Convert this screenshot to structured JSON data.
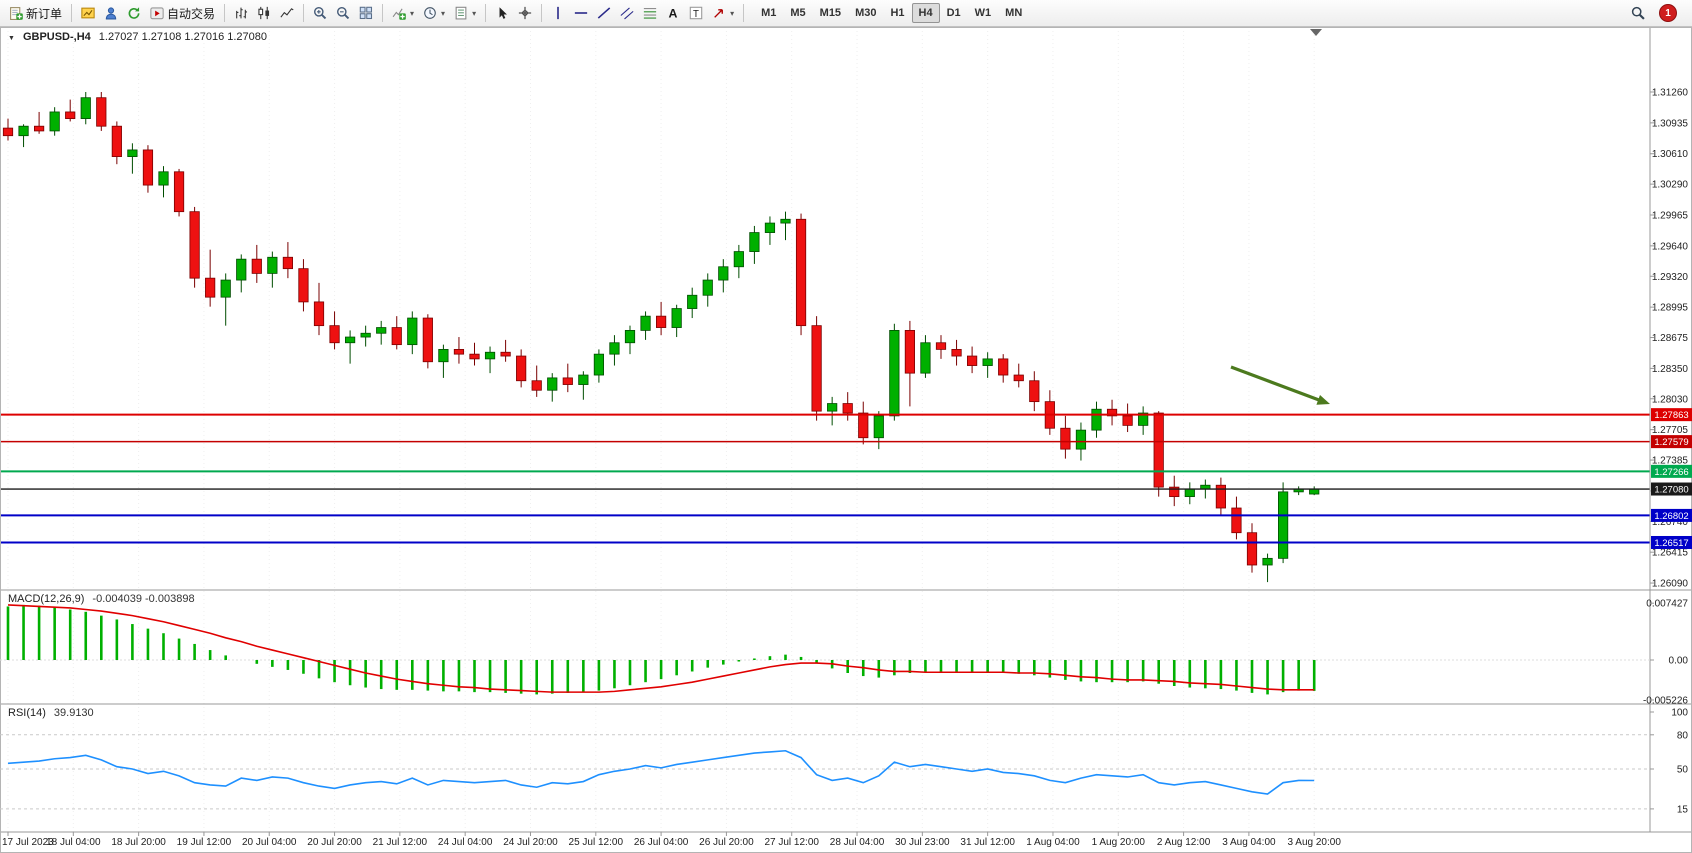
{
  "toolbar": {
    "new_order_label": "新订单",
    "autotrading_label": "自动交易",
    "dropdown_glyph": "▾",
    "notification_count": "1",
    "timeframes": [
      "M1",
      "M5",
      "M15",
      "M30",
      "H1",
      "H4",
      "D1",
      "W1",
      "MN"
    ],
    "active_timeframe": "H4",
    "buttons": [
      {
        "name": "new-order-button",
        "icon": "new-order-icon",
        "kind": "newdoc",
        "label": "新订单"
      },
      {
        "sep": true
      },
      {
        "name": "new-chart-button",
        "icon": "new-chart-icon",
        "kind": "chartYellow"
      },
      {
        "name": "profiles-button",
        "icon": "profiles-icon",
        "kind": "profile"
      },
      {
        "name": "refresh-button",
        "icon": "refresh-icon",
        "kind": "refresh"
      },
      {
        "name": "autotrading-button",
        "icon": "autotrading-icon",
        "kind": "autotrade",
        "label": "自动交易"
      },
      {
        "sep": true
      },
      {
        "name": "bar-chart-button",
        "icon": "bar-chart-icon",
        "kind": "bars"
      },
      {
        "name": "candlestick-chart-button",
        "icon": "candlestick-icon",
        "kind": "candles"
      },
      {
        "name": "line-chart-button",
        "icon": "line-chart-icon",
        "kind": "linechart"
      },
      {
        "sep": true
      },
      {
        "name": "zoom-in-button",
        "icon": "zoom-in-icon",
        "kind": "zoomin"
      },
      {
        "name": "zoom-out-button",
        "icon": "zoom-out-icon",
        "kind": "zoomout"
      },
      {
        "name": "tile-windows-button",
        "icon": "tile-windows-icon",
        "kind": "tile"
      },
      {
        "sep": true
      },
      {
        "name": "indicators-button",
        "icon": "indicators-icon",
        "kind": "indicators",
        "dropdown": true
      },
      {
        "name": "periods-button",
        "icon": "clock-icon",
        "kind": "periods",
        "dropdown": true
      },
      {
        "name": "templates-button",
        "icon": "template-icon",
        "kind": "template",
        "dropdown": true
      },
      {
        "sep": true
      },
      {
        "name": "cursor-button",
        "icon": "cursor-icon",
        "kind": "cursor"
      },
      {
        "name": "crosshair-button",
        "icon": "crosshair-icon",
        "kind": "crosshair"
      },
      {
        "sep": true
      },
      {
        "name": "vertical-line-button",
        "icon": "vertical-line-icon",
        "kind": "vline"
      },
      {
        "name": "horizontal-line-button",
        "icon": "horizontal-line-icon",
        "kind": "hline"
      },
      {
        "name": "trendline-button",
        "icon": "trendline-icon",
        "kind": "tline"
      },
      {
        "name": "channel-button",
        "icon": "channel-icon",
        "kind": "channel"
      },
      {
        "name": "fibonacci-button",
        "icon": "fibonacci-icon",
        "kind": "fibo"
      },
      {
        "name": "text-button",
        "icon": "text-icon",
        "kind": "textA"
      },
      {
        "name": "label-button",
        "icon": "label-icon",
        "kind": "textT"
      },
      {
        "name": "arrows-button",
        "icon": "arrows-icon",
        "kind": "arrows",
        "dropdown": true
      },
      {
        "sep": true
      }
    ]
  },
  "chart": {
    "collapse_glyph": "▼",
    "symbol_label": "GBPUSD-,H4",
    "ohlc": "1.27027 1.27108 1.27016 1.27080",
    "price_axis": [
      "1.31260",
      "1.30935",
      "1.30610",
      "1.30290",
      "1.29965",
      "1.29640",
      "1.29320",
      "1.28995",
      "1.28675",
      "1.28350",
      "1.28030",
      "1.27705",
      "1.27385",
      "1.27060",
      "1.26740",
      "1.26415",
      "1.26090"
    ],
    "levels": [
      {
        "price": 1.27863,
        "label": "1.27863",
        "color": "#DD0000",
        "width": 2
      },
      {
        "price": 1.27579,
        "label": "1.27579",
        "color": "#C40000",
        "width": 1.4
      },
      {
        "price": 1.27266,
        "label": "1.27266",
        "color": "#00A94F",
        "width": 2
      },
      {
        "price": 1.2708,
        "label": "1.27080",
        "color": "#1a1a1a",
        "width": 1.4
      },
      {
        "price": 1.26802,
        "label": "1.26802",
        "color": "#0000C8",
        "width": 2
      },
      {
        "price": 1.26517,
        "label": "1.26517",
        "color": "#0000C8",
        "width": 2
      }
    ],
    "time_axis": [
      "17 Jul 2023",
      "18 Jul 04:00",
      "18 Jul 20:00",
      "19 Jul 12:00",
      "20 Jul 04:00",
      "20 Jul 20:00",
      "21 Jul 12:00",
      "24 Jul 04:00",
      "24 Jul 20:00",
      "25 Jul 12:00",
      "26 Jul 04:00",
      "26 Jul 20:00",
      "27 Jul 12:00",
      "28 Jul 04:00",
      "30 Jul 23:00",
      "31 Jul 12:00",
      "1 Aug 04:00",
      "1 Aug 20:00",
      "2 Aug 12:00",
      "3 Aug 04:00",
      "3 Aug 20:00"
    ]
  },
  "macd": {
    "label": "MACD(12,26,9)",
    "values": "-0.004039 -0.003898",
    "axis": [
      "0.007427",
      "0.00",
      "-0.005226"
    ]
  },
  "rsi": {
    "label": "RSI(14)",
    "value": "39.9130",
    "axis": [
      "100",
      "80",
      "50",
      "15"
    ]
  },
  "chart_data": {
    "type": "candlestick",
    "symbol": "GBPUSD",
    "timeframe": "H4",
    "ylim": [
      1.2609,
      1.3126
    ],
    "candles": [
      [
        1.3088,
        1.3098,
        1.3075,
        1.308
      ],
      [
        1.308,
        1.3092,
        1.3068,
        1.309
      ],
      [
        1.309,
        1.3105,
        1.3082,
        1.3085
      ],
      [
        1.3085,
        1.311,
        1.308,
        1.3105
      ],
      [
        1.3105,
        1.3118,
        1.3095,
        1.3098
      ],
      [
        1.3098,
        1.3126,
        1.3092,
        1.312
      ],
      [
        1.312,
        1.3126,
        1.3085,
        1.309
      ],
      [
        1.309,
        1.3095,
        1.305,
        1.3058
      ],
      [
        1.3058,
        1.3072,
        1.304,
        1.3065
      ],
      [
        1.3065,
        1.307,
        1.302,
        1.3028
      ],
      [
        1.3028,
        1.3048,
        1.3015,
        1.3042
      ],
      [
        1.3042,
        1.3045,
        1.2995,
        1.3
      ],
      [
        1.3,
        1.3005,
        1.292,
        1.293
      ],
      [
        1.293,
        1.296,
        1.29,
        1.291
      ],
      [
        1.291,
        1.2935,
        1.288,
        1.2928
      ],
      [
        1.2928,
        1.2955,
        1.2915,
        1.295
      ],
      [
        1.295,
        1.2965,
        1.2925,
        1.2935
      ],
      [
        1.2935,
        1.2958,
        1.292,
        1.2952
      ],
      [
        1.2952,
        1.2968,
        1.293,
        1.294
      ],
      [
        1.294,
        1.295,
        1.2895,
        1.2905
      ],
      [
        1.2905,
        1.2925,
        1.287,
        1.288
      ],
      [
        1.288,
        1.2895,
        1.2855,
        1.2862
      ],
      [
        1.2862,
        1.2875,
        1.284,
        1.2868
      ],
      [
        1.2868,
        1.288,
        1.2858,
        1.2872
      ],
      [
        1.2872,
        1.2885,
        1.286,
        1.2878
      ],
      [
        1.2878,
        1.289,
        1.2855,
        1.286
      ],
      [
        1.286,
        1.2895,
        1.285,
        1.2888
      ],
      [
        1.2888,
        1.2892,
        1.2835,
        1.2842
      ],
      [
        1.2842,
        1.286,
        1.2825,
        1.2855
      ],
      [
        1.2855,
        1.2868,
        1.284,
        1.285
      ],
      [
        1.285,
        1.2862,
        1.2838,
        1.2845
      ],
      [
        1.2845,
        1.2858,
        1.283,
        1.2852
      ],
      [
        1.2852,
        1.2865,
        1.2842,
        1.2848
      ],
      [
        1.2848,
        1.2855,
        1.2815,
        1.2822
      ],
      [
        1.2822,
        1.2838,
        1.2805,
        1.2812
      ],
      [
        1.2812,
        1.283,
        1.28,
        1.2825
      ],
      [
        1.2825,
        1.284,
        1.281,
        1.2818
      ],
      [
        1.2818,
        1.2832,
        1.2802,
        1.2828
      ],
      [
        1.2828,
        1.2855,
        1.282,
        1.285
      ],
      [
        1.285,
        1.287,
        1.2838,
        1.2862
      ],
      [
        1.2862,
        1.288,
        1.285,
        1.2875
      ],
      [
        1.2875,
        1.2895,
        1.2865,
        1.289
      ],
      [
        1.289,
        1.2905,
        1.287,
        1.2878
      ],
      [
        1.2878,
        1.2902,
        1.2868,
        1.2898
      ],
      [
        1.2898,
        1.292,
        1.2888,
        1.2912
      ],
      [
        1.2912,
        1.2935,
        1.29,
        1.2928
      ],
      [
        1.2928,
        1.295,
        1.2915,
        1.2942
      ],
      [
        1.2942,
        1.2965,
        1.293,
        1.2958
      ],
      [
        1.2958,
        1.2985,
        1.2945,
        1.2978
      ],
      [
        1.2978,
        1.2995,
        1.2965,
        1.2988
      ],
      [
        1.2988,
        1.3,
        1.297,
        1.2992
      ],
      [
        1.2992,
        1.2998,
        1.287,
        1.288
      ],
      [
        1.288,
        1.289,
        1.278,
        1.279
      ],
      [
        1.279,
        1.2805,
        1.2775,
        1.2798
      ],
      [
        1.2798,
        1.281,
        1.278,
        1.2788
      ],
      [
        1.2788,
        1.28,
        1.2755,
        1.2762
      ],
      [
        1.2762,
        1.279,
        1.275,
        1.2785
      ],
      [
        1.2785,
        1.2882,
        1.278,
        1.2875
      ],
      [
        1.2875,
        1.2885,
        1.2795,
        1.283
      ],
      [
        1.283,
        1.287,
        1.2825,
        1.2862
      ],
      [
        1.2862,
        1.287,
        1.2845,
        1.2855
      ],
      [
        1.2855,
        1.2865,
        1.2838,
        1.2848
      ],
      [
        1.2848,
        1.2858,
        1.283,
        1.2838
      ],
      [
        1.2838,
        1.2852,
        1.2825,
        1.2845
      ],
      [
        1.2845,
        1.285,
        1.282,
        1.2828
      ],
      [
        1.2828,
        1.284,
        1.2815,
        1.2822
      ],
      [
        1.2822,
        1.2832,
        1.279,
        1.28
      ],
      [
        1.28,
        1.2812,
        1.2765,
        1.2772
      ],
      [
        1.2772,
        1.2785,
        1.274,
        1.275
      ],
      [
        1.275,
        1.2778,
        1.2738,
        1.277
      ],
      [
        1.277,
        1.28,
        1.2762,
        1.2792
      ],
      [
        1.2792,
        1.2802,
        1.2775,
        1.2785
      ],
      [
        1.2785,
        1.2798,
        1.2768,
        1.2775
      ],
      [
        1.2775,
        1.2795,
        1.2765,
        1.2788
      ],
      [
        1.2788,
        1.279,
        1.27,
        1.271
      ],
      [
        1.271,
        1.2722,
        1.269,
        1.27
      ],
      [
        1.27,
        1.2715,
        1.2692,
        1.2708
      ],
      [
        1.2708,
        1.2718,
        1.2698,
        1.2712
      ],
      [
        1.2712,
        1.272,
        1.268,
        1.2688
      ],
      [
        1.2688,
        1.27,
        1.2655,
        1.2662
      ],
      [
        1.2662,
        1.2672,
        1.262,
        1.2628
      ],
      [
        1.2628,
        1.264,
        1.261,
        1.2635
      ],
      [
        1.2635,
        1.2715,
        1.263,
        1.2705
      ],
      [
        1.2705,
        1.27108,
        1.27016,
        1.2708
      ],
      [
        1.27027,
        1.27108,
        1.27016,
        1.2708
      ]
    ],
    "macd_hist": [
      0.007,
      0.0072,
      0.0071,
      0.0069,
      0.0066,
      0.0063,
      0.0058,
      0.0053,
      0.0047,
      0.0041,
      0.0035,
      0.0028,
      0.0021,
      0.0013,
      0.0006,
      0.0,
      -0.0005,
      -0.0009,
      -0.0013,
      -0.0018,
      -0.0024,
      -0.0029,
      -0.0033,
      -0.0036,
      -0.0038,
      -0.0039,
      -0.0039,
      -0.004,
      -0.0041,
      -0.0041,
      -0.0042,
      -0.0042,
      -0.0043,
      -0.0044,
      -0.0045,
      -0.0044,
      -0.0043,
      -0.0042,
      -0.004,
      -0.0037,
      -0.0033,
      -0.0029,
      -0.0025,
      -0.002,
      -0.0015,
      -0.001,
      -0.0006,
      -0.0002,
      0.0002,
      0.0005,
      0.0007,
      0.0004,
      -0.0004,
      -0.0011,
      -0.0017,
      -0.0021,
      -0.0023,
      -0.002,
      -0.0017,
      -0.0016,
      -0.0015,
      -0.0015,
      -0.0016,
      -0.0016,
      -0.0017,
      -0.0018,
      -0.002,
      -0.0023,
      -0.0026,
      -0.0028,
      -0.0029,
      -0.0029,
      -0.0029,
      -0.0028,
      -0.0031,
      -0.0034,
      -0.0036,
      -0.0037,
      -0.0038,
      -0.004,
      -0.0043,
      -0.0045,
      -0.0042,
      -0.004,
      -0.004039
    ],
    "macd_signal": [
      0.0072,
      0.0071,
      0.007,
      0.0069,
      0.0068,
      0.0066,
      0.0064,
      0.0061,
      0.0058,
      0.0054,
      0.005,
      0.0045,
      0.004,
      0.0035,
      0.0029,
      0.0024,
      0.0018,
      0.0013,
      0.0008,
      0.0003,
      -0.0002,
      -0.0007,
      -0.0012,
      -0.0017,
      -0.0021,
      -0.0025,
      -0.0028,
      -0.0031,
      -0.0033,
      -0.0035,
      -0.0036,
      -0.0038,
      -0.0039,
      -0.004,
      -0.0041,
      -0.0042,
      -0.0042,
      -0.0042,
      -0.0042,
      -0.0041,
      -0.0039,
      -0.0037,
      -0.0035,
      -0.0032,
      -0.0029,
      -0.0025,
      -0.0021,
      -0.0017,
      -0.0013,
      -0.0009,
      -0.0006,
      -0.0004,
      -0.0004,
      -0.0005,
      -0.0008,
      -0.001,
      -0.0013,
      -0.0015,
      -0.0015,
      -0.0016,
      -0.0016,
      -0.0016,
      -0.0016,
      -0.0016,
      -0.0016,
      -0.0017,
      -0.0017,
      -0.0018,
      -0.002,
      -0.0022,
      -0.0023,
      -0.0025,
      -0.0026,
      -0.0026,
      -0.0027,
      -0.0028,
      -0.003,
      -0.0031,
      -0.0032,
      -0.0034,
      -0.0036,
      -0.0038,
      -0.0039,
      -0.0039,
      -0.003898
    ],
    "rsi": [
      55,
      56,
      57,
      59,
      60,
      62,
      58,
      52,
      50,
      46,
      48,
      44,
      38,
      36,
      35,
      42,
      40,
      43,
      42,
      38,
      35,
      33,
      36,
      38,
      39,
      37,
      42,
      36,
      40,
      39,
      38,
      39,
      40,
      36,
      34,
      38,
      37,
      39,
      45,
      48,
      50,
      53,
      51,
      54,
      56,
      58,
      60,
      62,
      64,
      65,
      66,
      60,
      45,
      40,
      42,
      38,
      44,
      56,
      52,
      54,
      52,
      50,
      48,
      50,
      47,
      46,
      44,
      40,
      38,
      42,
      45,
      44,
      43,
      45,
      38,
      36,
      38,
      39,
      36,
      33,
      30,
      28,
      38,
      40,
      39.913
    ]
  }
}
